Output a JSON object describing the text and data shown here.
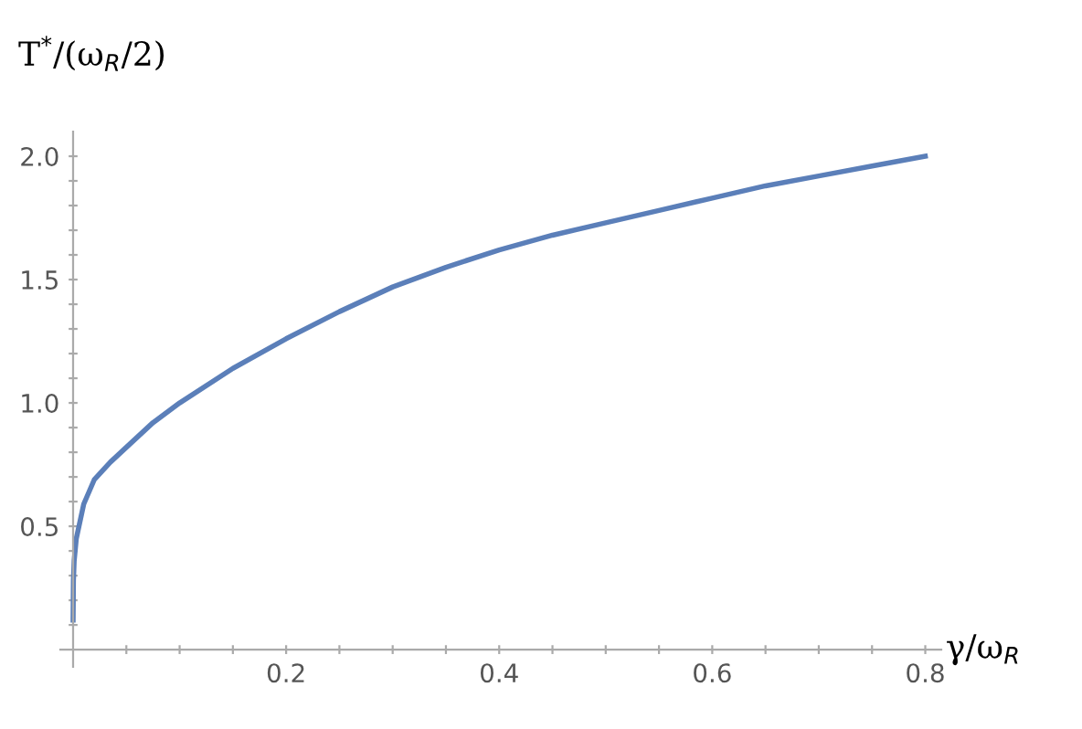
{
  "chart_data": {
    "type": "line",
    "xlabel": "γ/ω$_{R}$",
    "ylabel": "T$^{*}$/(ω$_{R}$/2)",
    "x": [
      0,
      0.0003,
      0.001,
      0.003,
      0.01,
      0.02,
      0.035,
      0.05,
      0.075,
      0.1,
      0.15,
      0.2,
      0.25,
      0.3,
      0.35,
      0.4,
      0.45,
      0.5,
      0.55,
      0.6,
      0.65,
      0.7,
      0.75,
      0.8
    ],
    "series": [
      {
        "color": "#5b7fb9",
        "values": [
          0.12,
          0.28,
          0.36,
          0.45,
          0.59,
          0.69,
          0.76,
          0.82,
          0.92,
          1.0,
          1.14,
          1.26,
          1.37,
          1.47,
          1.55,
          1.62,
          1.68,
          1.73,
          1.78,
          1.83,
          1.88,
          1.92,
          1.96,
          2.0
        ]
      }
    ],
    "xlim": [
      -0.012,
      0.815
    ],
    "ylim": [
      -0.07,
      2.1
    ],
    "xticks": [
      {
        "value": 0.05,
        "label": null
      },
      {
        "value": 0.1,
        "label": null
      },
      {
        "value": 0.15,
        "label": null
      },
      {
        "value": 0.2,
        "label": "0.2"
      },
      {
        "value": 0.25,
        "label": null
      },
      {
        "value": 0.3,
        "label": null
      },
      {
        "value": 0.35,
        "label": null
      },
      {
        "value": 0.4,
        "label": "0.4"
      },
      {
        "value": 0.45,
        "label": null
      },
      {
        "value": 0.5,
        "label": null
      },
      {
        "value": 0.55,
        "label": null
      },
      {
        "value": 0.6,
        "label": "0.6"
      },
      {
        "value": 0.65,
        "label": null
      },
      {
        "value": 0.7,
        "label": null
      },
      {
        "value": 0.75,
        "label": null
      },
      {
        "value": 0.8,
        "label": "0.8"
      }
    ],
    "yticks": [
      {
        "value": 0.1,
        "label": null
      },
      {
        "value": 0.2,
        "label": null
      },
      {
        "value": 0.3,
        "label": null
      },
      {
        "value": 0.4,
        "label": null
      },
      {
        "value": 0.5,
        "label": "0.5"
      },
      {
        "value": 0.6,
        "label": null
      },
      {
        "value": 0.7,
        "label": null
      },
      {
        "value": 0.8,
        "label": null
      },
      {
        "value": 0.9,
        "label": null
      },
      {
        "value": 1.0,
        "label": "1.0"
      },
      {
        "value": 1.1,
        "label": null
      },
      {
        "value": 1.2,
        "label": null
      },
      {
        "value": 1.3,
        "label": null
      },
      {
        "value": 1.4,
        "label": null
      },
      {
        "value": 1.5,
        "label": "1.5"
      },
      {
        "value": 1.6,
        "label": null
      },
      {
        "value": 1.7,
        "label": null
      },
      {
        "value": 1.8,
        "label": null
      },
      {
        "value": 1.9,
        "label": null
      },
      {
        "value": 2.0,
        "label": "2.0"
      }
    ],
    "grid": false,
    "legend": false,
    "marker": "none",
    "line_style": "solid"
  }
}
